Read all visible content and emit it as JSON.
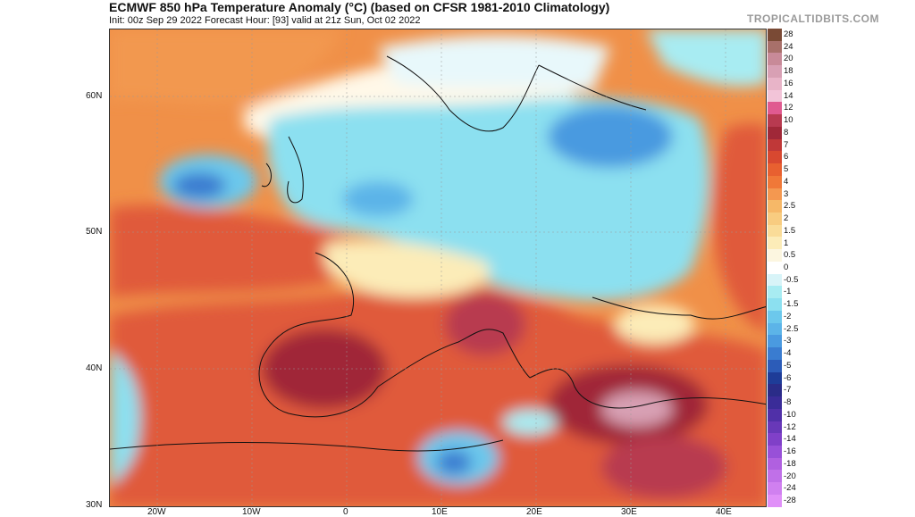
{
  "header": {
    "title": "ECMWF 850 hPa Temperature Anomaly (°C) (based on CFSR 1981-2010 Climatology)",
    "subtitle": "Init: 00z Sep 29 2022   Forecast Hour: [93]   valid at 21z Sun, Oct 02 2022",
    "brand": "TROPICALTIDBITS.COM"
  },
  "latitude_labels": [
    "60N",
    "50N",
    "40N",
    "30N"
  ],
  "longitude_labels": [
    "20W",
    "10W",
    "0",
    "10E",
    "20E",
    "30E",
    "40E"
  ],
  "colorbar": {
    "labels": [
      "28",
      "24",
      "20",
      "18",
      "16",
      "14",
      "12",
      "10",
      "8",
      "7",
      "6",
      "5",
      "4",
      "3",
      "2.5",
      "2",
      "1.5",
      "1",
      "0.5",
      "0",
      "-0.5",
      "-1",
      "-1.5",
      "-2",
      "-2.5",
      "-3",
      "-4",
      "-5",
      "-6",
      "-7",
      "-8",
      "-10",
      "-12",
      "-14",
      "-16",
      "-18",
      "-20",
      "-24",
      "-28"
    ],
    "colors": [
      "#7a4a35",
      "#a8706a",
      "#c88a98",
      "#d8a0b4",
      "#e8b4c8",
      "#f2c4d8",
      "#e05a90",
      "#b83a50",
      "#a02838",
      "#c03838",
      "#d84830",
      "#e86030",
      "#f07838",
      "#f49850",
      "#f6b868",
      "#f8cc80",
      "#fadc98",
      "#fcecb8",
      "#fcf6e0",
      "#ffffff",
      "#d8f4f8",
      "#a8ecf2",
      "#8ce0f0",
      "#6cc8ec",
      "#5cb4e8",
      "#4a9ae0",
      "#3a7cd0",
      "#2c5cb8",
      "#1e3c98",
      "#2a2c88",
      "#3a2c98",
      "#5030a8",
      "#6838b8",
      "#8040c8",
      "#9850d8",
      "#b060e0",
      "#c070e8",
      "#d080f0",
      "#e090f8"
    ]
  }
}
